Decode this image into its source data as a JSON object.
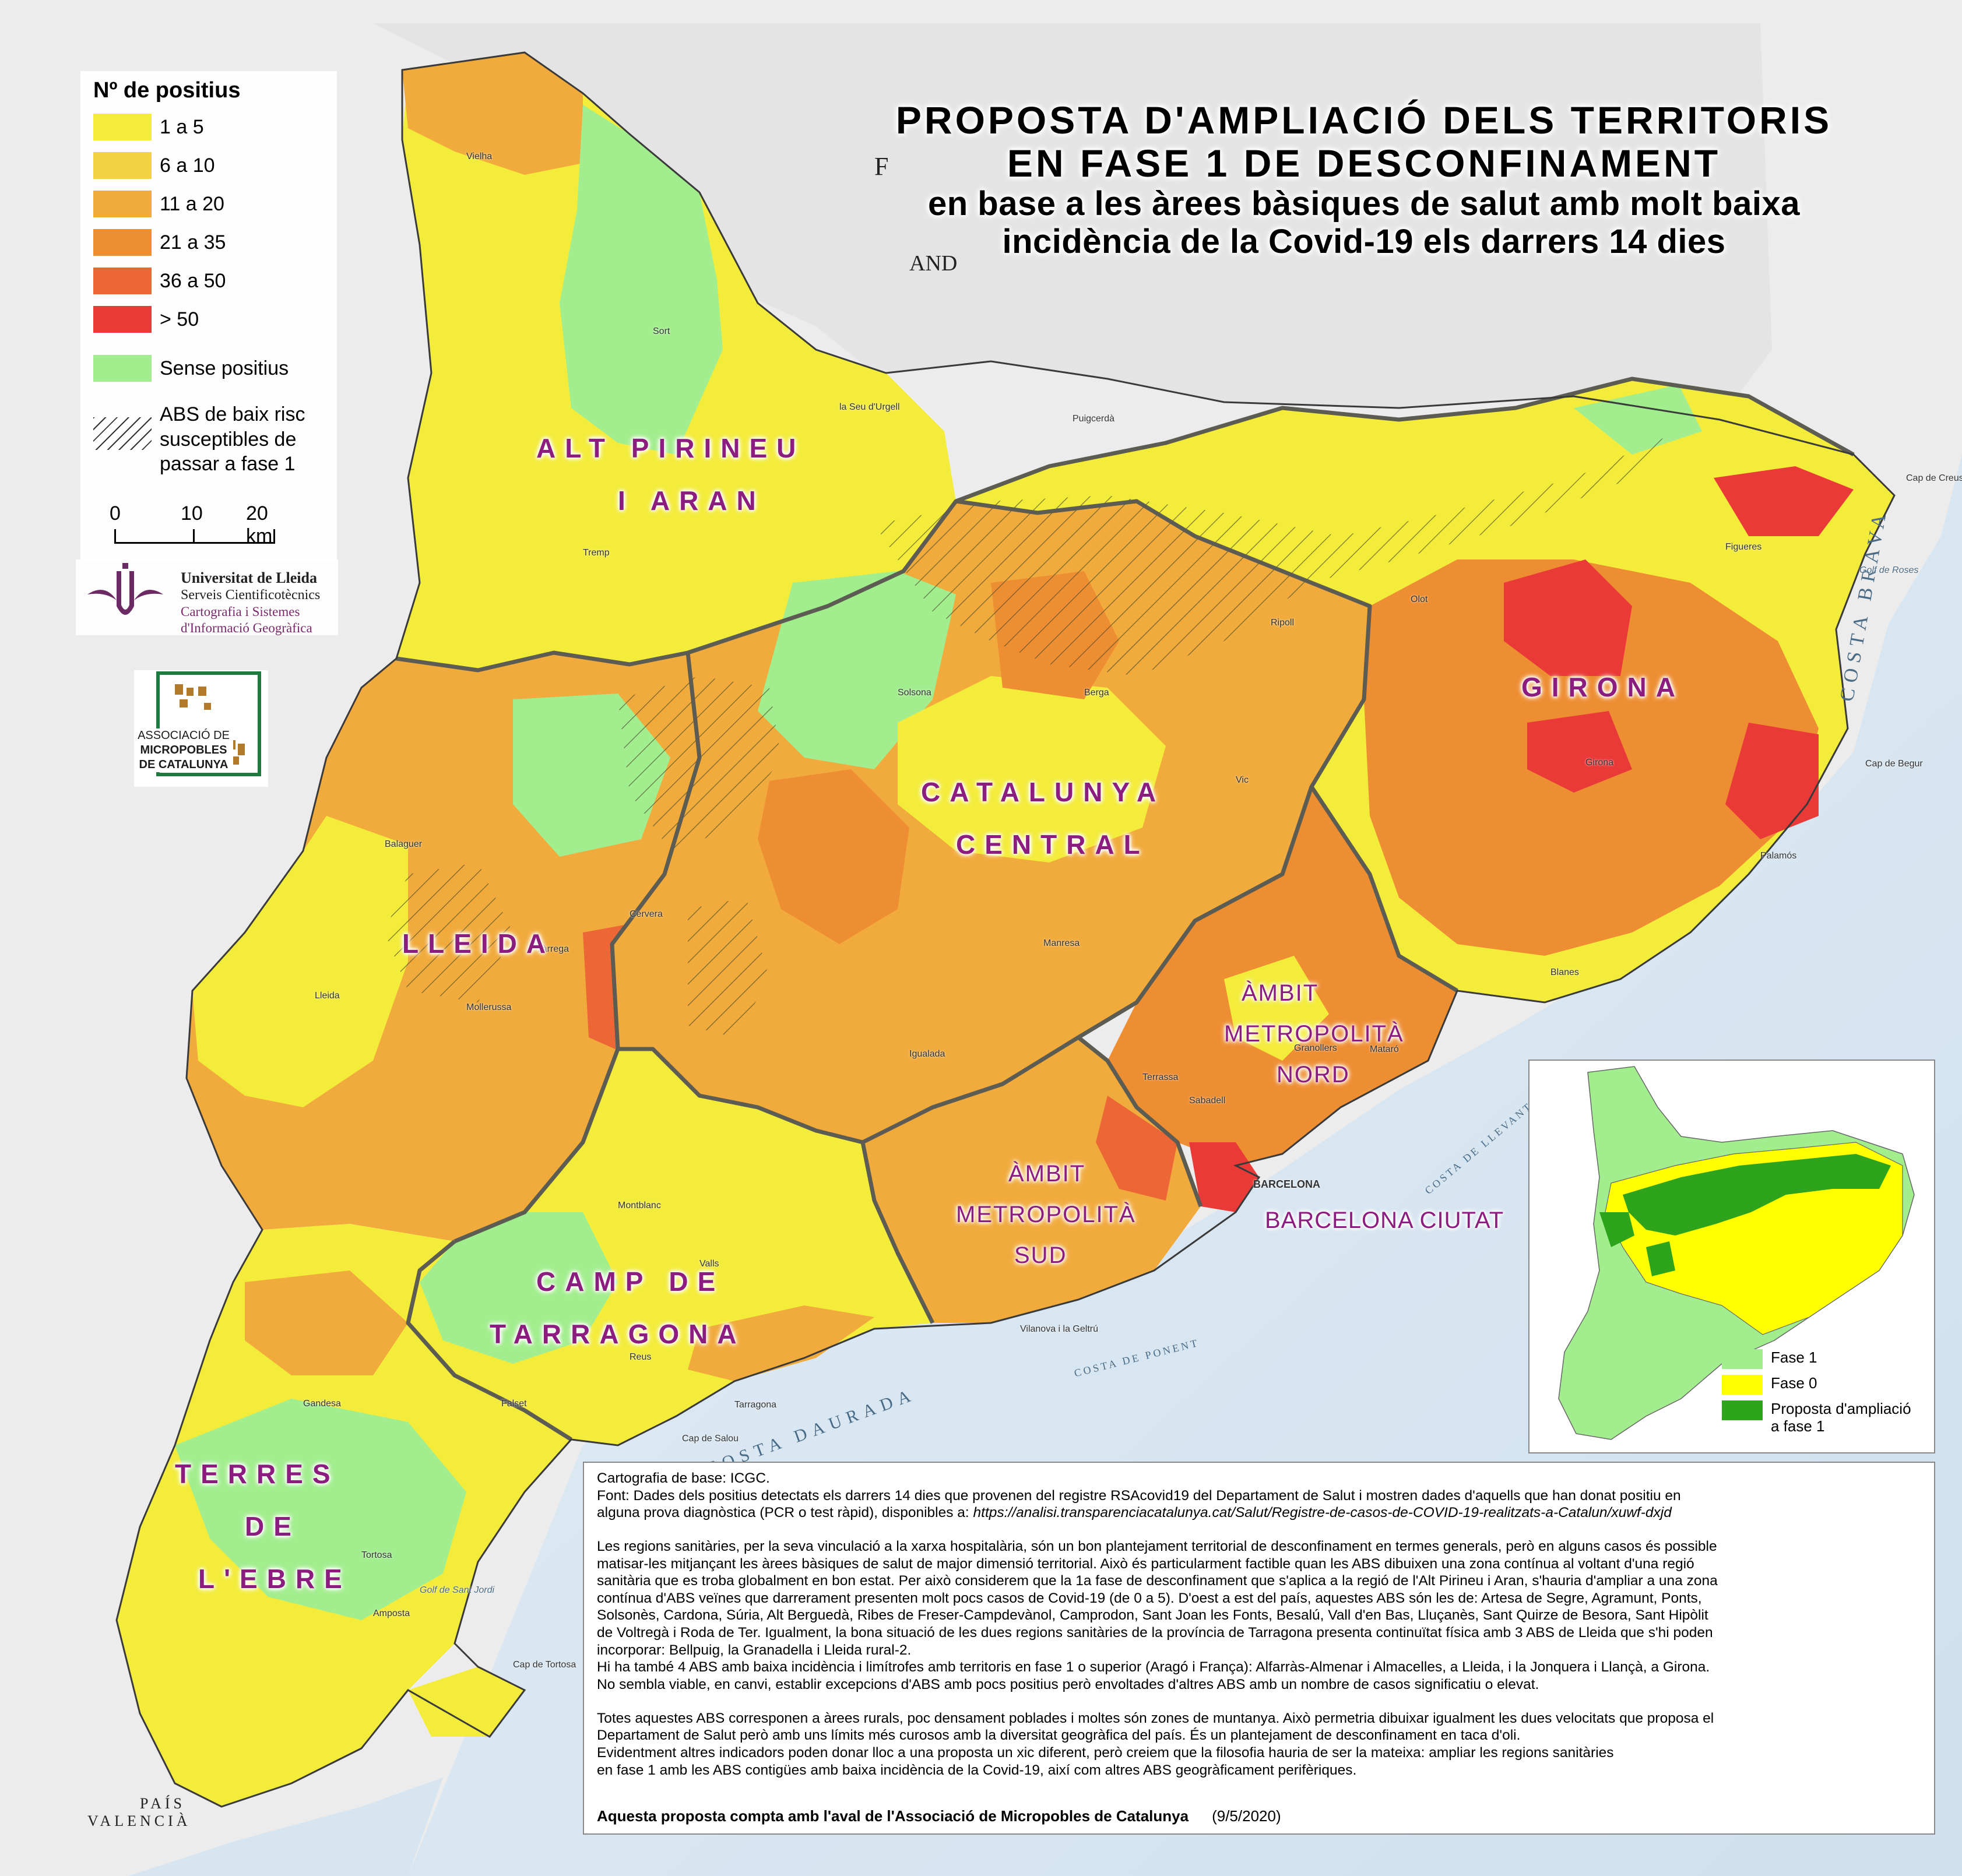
{
  "title": {
    "line1": "PROPOSTA D'AMPLIACIÓ DELS TERRITORIS",
    "line2": "EN FASE 1 DE DESCONFINAMENT",
    "line3": "en base a les àrees bàsiques de salut amb molt baixa",
    "line4": "incidència de la Covid-19  els darrers 14 dies"
  },
  "legend": {
    "title": "Nº de positius",
    "items": [
      {
        "label": "1 a 5",
        "color": "#f4ec3a"
      },
      {
        "label": "6 a 10",
        "color": "#f5d144"
      },
      {
        "label": "11 a 20",
        "color": "#f1ab3c"
      },
      {
        "label": "21 a 35",
        "color": "#ee8e33"
      },
      {
        "label": "36 a 50",
        "color": "#ec6735"
      },
      {
        "label": "> 50",
        "color": "#ea3a38"
      }
    ],
    "no_positives": {
      "label": "Sense positius",
      "color": "#a2ee8e"
    },
    "hatch_label_1": "ABS de baix risc",
    "hatch_label_2": "susceptibles de",
    "hatch_label_3": "passar a fase 1",
    "scale": {
      "s0": "0",
      "s10": "10",
      "s20": "20 km"
    }
  },
  "logos": {
    "udl_line1": "Universitat de Lleida",
    "udl_line2": "Serveis Cientificotècnics",
    "udl_line3": "Cartografia i Sistemes",
    "udl_line4": "d'Informació Geogràfica",
    "amc_line1": "ASSOCIACIÓ DE",
    "amc_line2": "MICROPOBLES",
    "amc_line3": "DE CATALUNYA"
  },
  "regions": {
    "alt_pirineu_1": "ALT PIRINEU",
    "alt_pirineu_2": "I ARAN",
    "lleida": "LLEIDA",
    "catalunya_central_1": "CATALUNYA",
    "catalunya_central_2": "CENTRAL",
    "girona": "GIRONA",
    "camp_1": "CAMP DE",
    "camp_2": "TARRAGONA",
    "terres_1": "TERRES",
    "terres_2": "DE",
    "terres_3": "L'EBRE",
    "amn_1": "ÀMBIT",
    "amn_2": "METROPOLITÀ",
    "amn_3": "NORD",
    "ams_1": "ÀMBIT",
    "ams_2": "METROPOLITÀ",
    "ams_3": "SUD",
    "bcn": "BARCELONA CIUTAT"
  },
  "inset_legend": {
    "fase1": {
      "label": "Fase 1",
      "color": "#a2ee8e"
    },
    "fase0": {
      "label": "Fase 0",
      "color": "#ffff00"
    },
    "proposta_1": "Proposta d'ampliació",
    "proposta_2": "a fase 1",
    "proposta_color": "#2ea31c"
  },
  "textbox": {
    "l1": "Cartografia de base: ICGC.",
    "l2": "Font: Dades dels positius detectats els darrers 14 dies que provenen del registre RSAcovid19 del Departament de Salut i mostren dades d'aquells que han donat positiu en",
    "l3a": "alguna prova diagnòstica (PCR o test ràpid), disponibles a: ",
    "l3b": "https://analisi.transparenciacatalunya.cat/Salut/Registre-de-casos-de-COVID-19-realitzats-a-Catalun/xuwf-dxjd",
    "p1": "Les regions sanitàries, per la seva vinculació a la xarxa hospitalària, són un bon plantejament territorial de desconfinament en termes generals, però en alguns casos és possible",
    "p2": "matisar-les mitjançant les àrees bàsiques de salut de major dimensió territorial. Això és particularment factible quan les ABS dibuixen una zona contínua al voltant d'una regió",
    "p3": "sanitària que es troba globalment en bon estat. Per això considerem que la 1a fase de desconfinament que s'aplica a la regió de l'Alt Pirineu i Aran, s'hauria d'ampliar a una zona",
    "p4": "contínua d'ABS veïnes que darrerament presenten molt pocs casos de Covid-19 (de 0 a 5). D'oest a est del país, aquestes ABS són les de: Artesa de Segre, Agramunt, Ponts,",
    "p5": "Solsonès, Cardona, Súria, Alt Berguedà, Ribes de Freser-Campdevànol, Camprodon, Sant Joan les Fonts, Besalú, Vall d'en Bas, Lluçanès, Sant Quirze de Besora, Sant Hipòlit",
    "p6": "de Voltregà i Roda de Ter. Igualment, la bona situació de les dues regions sanitàries de la província de Tarragona presenta continuïtat física amb 3 ABS de Lleida que s'hi poden",
    "p7": "incorporar: Bellpuig, la Granadella i Lleida rural-2.",
    "p8": "Hi ha també 4 ABS amb baixa incidència i limítrofes amb territoris en fase 1 o superior (Aragó i França): Alfarràs-Almenar i Almacelles, a Lleida, i la Jonquera i Llançà, a Girona.",
    "p9": "No sembla viable, en canvi, establir excepcions d'ABS amb pocs positius però envoltades d'altres ABS amb un nombre de casos significatiu o elevat.",
    "q1": "Totes aquestes ABS corresponen a àrees rurals, poc densament poblades i moltes són zones de muntanya. Això permetria dibuixar igualment les dues velocitats que proposa el",
    "q2": "Departament de Salut però amb uns límits més curosos amb la diversitat geogràfica del país. És un plantejament de desconfinament en taca d'oli.",
    "q3": "Evidentment altres indicadors poden donar lloc a una proposta un xic diferent, però creiem que la filosofia hauria de ser la mateixa: ampliar les regions sanitàries",
    "q4": "en fase 1 amb les ABS contigües amb baixa incidència de la Covid-19, així com altres ABS geogràficament perifèriques.",
    "footer": "Aquesta proposta compta amb l'aval de l'Associació de Micropobles de Catalunya",
    "date": "(9/5/2020)"
  },
  "basemap": {
    "andorra": "AND",
    "france_f": "F",
    "pais_valencia_1": "PAÍS",
    "pais_valencia_2": "VALENCIÀ",
    "costa_brava": "COSTA BRAVA",
    "costa_daurada": "COSTA DAURADA",
    "costa_levant": "COSTA DE LLEVANT",
    "costa_ponent": "COSTA DE PONENT",
    "barcelona": "BARCELONA",
    "tarragona": "Tarragona",
    "mataro": "Mataró",
    "vilanova": "Vilanova i la Geltrú",
    "golf_roses": "Golf de Roses",
    "golf_sant_jordi": "Golf de Sant Jordi",
    "cap_creus": "Cap de Creus",
    "cap_begur": "Cap de Begur",
    "cap_salou": "Cap de Salou",
    "cap_tortosa": "Cap de Tortosa",
    "tortosa": "Tortosa",
    "lleida_city": "Lleida",
    "girona_city": "Girona",
    "manresa": "Manresa",
    "vic": "Vic",
    "reus": "Reus",
    "figueres": "Figueres",
    "puigcerda": "Puigcerdà",
    "la_seu": "la Seu d'Urgell",
    "balaguer": "Balaguer",
    "tarrega": "Tàrrega",
    "cervera": "Cervera",
    "olot": "Olot",
    "ripoll": "Ripoll",
    "berga": "Berga",
    "solsona": "Solsona",
    "amposta": "Amposta",
    "igualada": "Igualada",
    "terrassa": "Terrassa",
    "sabadell": "Sabadell",
    "granollers": "Granollers",
    "blanes": "Blanes",
    "palamos": "Palamós",
    "valls": "Valls",
    "montblanc": "Montblanc",
    "gandesa": "Gandesa",
    "falset": "Falset",
    "mollerussa": "Mollerussa",
    "sort": "Sort",
    "tremp": "Tremp",
    "vielha": "Vielha"
  }
}
